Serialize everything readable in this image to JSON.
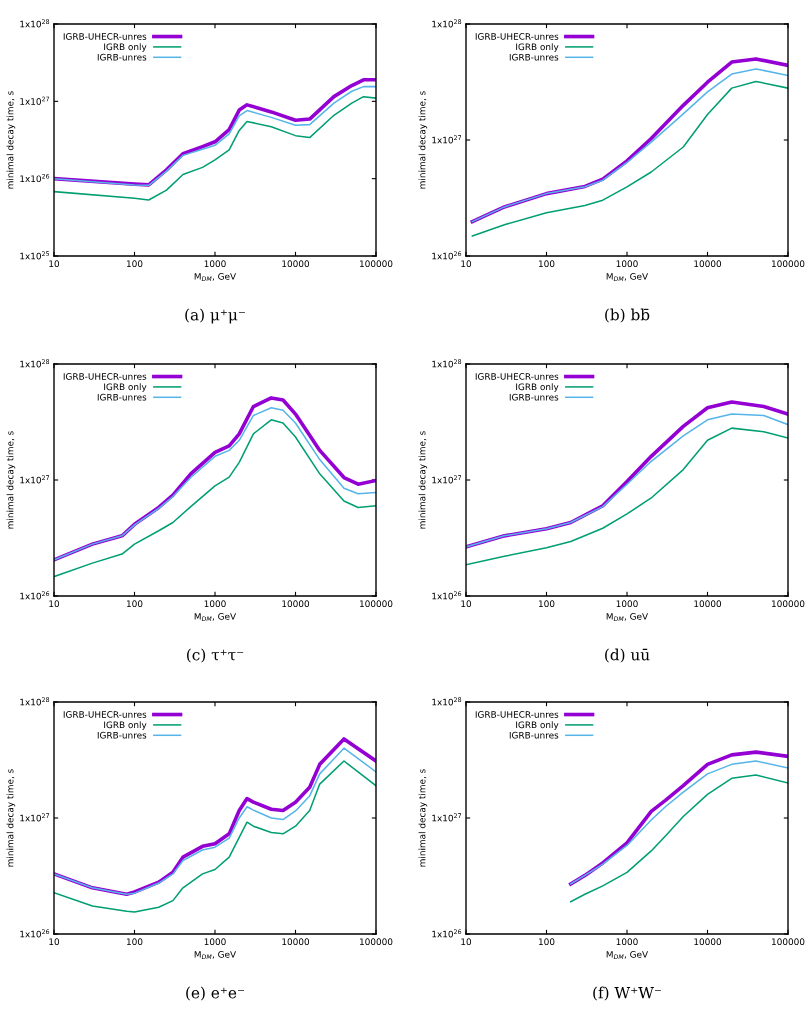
{
  "chart_data": [
    {
      "type": "line",
      "log": "xy",
      "legend": "top left",
      "grid": false,
      "xlabel": "M$_{DM}$, GeV",
      "ylabel": "minimal decay time, s",
      "annotations": [
        "(a) μ⁺μ⁻"
      ],
      "xlim": [
        10,
        100000
      ],
      "xticks": [
        10,
        100,
        1000,
        10000,
        100000
      ],
      "ylim": [
        1e+25,
        1e+28
      ],
      "yticks": [
        {
          "value": 1e+25,
          "label": "1x10$^{25}$"
        },
        {
          "value": 1e+26,
          "label": "1x10$^{26}$"
        },
        {
          "value": 1e+27,
          "label": "1x10$^{27}$"
        },
        {
          "value": 1e+28,
          "label": "1x10$^{28}$"
        }
      ],
      "x": [
        10,
        100,
        150,
        250,
        400,
        700,
        1000,
        1500,
        2000,
        2500,
        5000,
        10000,
        15000,
        30000,
        50000,
        70000,
        100000
      ],
      "series": [
        {
          "name": "IGRB-UHECR-unres",
          "color": "#9400d3",
          "values": [
            1e+26,
            8.5e+25,
            8.3e+25,
            1.3e+26,
            2.1e+26,
            2.6e+26,
            3e+26,
            4.3e+26,
            7.7e+26,
            9e+26,
            7.3e+26,
            5.7e+26,
            5.9e+26,
            1.15e+27,
            1.6e+27,
            1.9e+27,
            1.9e+27
          ]
        },
        {
          "name": "IGRB only",
          "color": "#009e73",
          "values": [
            6.8e+25,
            5.6e+25,
            5.3e+25,
            7.1e+25,
            1.13e+26,
            1.4e+26,
            1.75e+26,
            2.35e+26,
            4.2e+26,
            5.5e+26,
            4.7e+26,
            3.6e+26,
            3.4e+26,
            6.6e+26,
            9.5e+26,
            1.15e+27,
            1.1e+27
          ]
        },
        {
          "name": "IGRB-unres",
          "color": "#56b4e9",
          "values": [
            1e+26,
            8.3e+25,
            8.2e+25,
            1.25e+26,
            2e+26,
            2.4e+26,
            2.7e+26,
            3.8e+26,
            6.5e+26,
            7.6e+26,
            6.2e+26,
            4.9e+26,
            5e+26,
            9.5e+26,
            1.35e+27,
            1.55e+27,
            1.55e+27
          ]
        }
      ]
    },
    {
      "type": "line",
      "log": "xy",
      "legend": "top left",
      "grid": false,
      "xlabel": "M$_{DM}$, GeV",
      "ylabel": "minimal decay time, s",
      "annotations": [
        "(b) bb̄"
      ],
      "xlim": [
        10,
        100000
      ],
      "xticks": [
        10,
        100,
        1000,
        10000,
        100000
      ],
      "ylim": [
        1e+26,
        1e+28
      ],
      "yticks": [
        {
          "value": 1e+26,
          "label": "1x10$^{26}$"
        },
        {
          "value": 1e+27,
          "label": "1x10$^{27}$"
        },
        {
          "value": 1e+28,
          "label": "1x10$^{28}$"
        }
      ],
      "x": [
        12,
        30,
        100,
        300,
        500,
        1000,
        2000,
        5000,
        10000,
        20000,
        40000,
        100000
      ],
      "series": [
        {
          "name": "IGRB-UHECR-unres",
          "color": "#9400d3",
          "values": [
            1.98e+26,
            2.65e+26,
            3.45e+26,
            3.98e+26,
            4.6e+26,
            6.6e+26,
            1.03e+27,
            1.99e+27,
            3.15e+27,
            4.7e+27,
            5e+27,
            4.4e+27
          ]
        },
        {
          "name": "IGRB only",
          "color": "#009e73",
          "values": [
            1.49e+26,
            1.86e+26,
            2.36e+26,
            2.72e+26,
            3.03e+26,
            3.95e+26,
            5.3e+26,
            8.7e+26,
            1.66e+27,
            2.8e+27,
            3.2e+27,
            2.8e+27
          ]
        },
        {
          "name": "IGRB-unres",
          "color": "#56b4e9",
          "values": [
            1.98e+26,
            2.65e+26,
            3.45e+26,
            3.95e+26,
            4.5e+26,
            6.4e+26,
            9.6e+26,
            1.68e+27,
            2.6e+27,
            3.7e+27,
            4.1e+27,
            3.6e+27
          ]
        }
      ]
    },
    {
      "type": "line",
      "log": "xy",
      "legend": "top left",
      "grid": false,
      "xlabel": "M$_{DM}$, GeV",
      "ylabel": "minimal decay time, s",
      "annotations": [
        "(c) τ⁺τ⁻"
      ],
      "xlim": [
        10,
        100000
      ],
      "xticks": [
        10,
        100,
        1000,
        10000,
        100000
      ],
      "ylim": [
        1e+26,
        1e+28
      ],
      "yticks": [
        {
          "value": 1e+26,
          "label": "1x10$^{26}$"
        },
        {
          "value": 1e+27,
          "label": "1x10$^{27}$"
        },
        {
          "value": 1e+28,
          "label": "1x10$^{28}$"
        }
      ],
      "x": [
        10,
        30,
        70,
        100,
        200,
        300,
        500,
        1000,
        1500,
        2000,
        3000,
        5000,
        7000,
        10000,
        20000,
        40000,
        60000,
        100000
      ],
      "series": [
        {
          "name": "IGRB-UHECR-unres",
          "color": "#9400d3",
          "values": [
            2.05e+26,
            2.8e+26,
            3.3e+26,
            4.15e+26,
            5.8e+26,
            7.4e+26,
            1.13e+27,
            1.73e+27,
            1.97e+27,
            2.5e+27,
            4.3e+27,
            5.1e+27,
            4.9e+27,
            3.7e+27,
            1.8e+27,
            1.05e+27,
            9.2e+26,
            9.9e+26
          ]
        },
        {
          "name": "IGRB only",
          "color": "#009e73",
          "values": [
            1.47e+26,
            1.92e+26,
            2.3e+26,
            2.8e+26,
            3.65e+26,
            4.3e+26,
            5.9e+26,
            8.9e+26,
            1.06e+27,
            1.42e+27,
            2.5e+27,
            3.3e+27,
            3.1e+27,
            2.35e+27,
            1.13e+27,
            6.6e+26,
            5.8e+26,
            6e+26
          ]
        },
        {
          "name": "IGRB-unres",
          "color": "#56b4e9",
          "values": [
            2.05e+26,
            2.8e+26,
            3.3e+26,
            4.1e+26,
            5.7e+26,
            7.2e+26,
            1.05e+27,
            1.6e+27,
            1.8e+27,
            2.2e+27,
            3.6e+27,
            4.2e+27,
            4e+27,
            3.1e+27,
            1.5e+27,
            8.5e+26,
            7.6e+26,
            7.8e+26
          ]
        }
      ]
    },
    {
      "type": "line",
      "log": "xy",
      "legend": "top left",
      "grid": false,
      "xlabel": "M$_{DM}$, GeV",
      "ylabel": "minimal decay time, s",
      "annotations": [
        "(d) uū"
      ],
      "xlim": [
        10,
        100000
      ],
      "xticks": [
        10,
        100,
        1000,
        10000,
        100000
      ],
      "ylim": [
        1e+26,
        1e+28
      ],
      "yticks": [
        {
          "value": 1e+26,
          "label": "1x10$^{26}$"
        },
        {
          "value": 1e+27,
          "label": "1x10$^{27}$"
        },
        {
          "value": 1e+28,
          "label": "1x10$^{28}$"
        }
      ],
      "x": [
        10,
        30,
        100,
        200,
        500,
        1000,
        2000,
        5000,
        10000,
        20000,
        50000,
        100000
      ],
      "series": [
        {
          "name": "IGRB-UHECR-unres",
          "color": "#9400d3",
          "values": [
            2.65e+26,
            3.3e+26,
            3.8e+26,
            4.3e+26,
            6e+26,
            9.7e+26,
            1.6e+27,
            2.9e+27,
            4.2e+27,
            4.7e+27,
            4.3e+27,
            3.7e+27
          ]
        },
        {
          "name": "IGRB only",
          "color": "#009e73",
          "values": [
            1.86e+26,
            2.2e+26,
            2.6e+26,
            2.95e+26,
            3.84e+26,
            5.1e+26,
            7e+26,
            1.23e+27,
            2.2e+27,
            2.8e+27,
            2.6e+27,
            2.3e+27
          ]
        },
        {
          "name": "IGRB-unres",
          "color": "#56b4e9",
          "values": [
            2.65e+26,
            3.3e+26,
            3.8e+26,
            4.3e+26,
            5.9e+26,
            9.2e+26,
            1.45e+27,
            2.4e+27,
            3.3e+27,
            3.7e+27,
            3.6e+27,
            3e+27
          ]
        }
      ]
    },
    {
      "type": "line",
      "log": "xy",
      "legend": "top left",
      "grid": false,
      "xlabel": "M$_{DM}$, GeV",
      "ylabel": "minimal decay time, s",
      "annotations": [
        "(e) e⁺e⁻"
      ],
      "xlim": [
        10,
        100000
      ],
      "xticks": [
        10,
        100,
        1000,
        10000,
        100000
      ],
      "ylim": [
        1e+26,
        1e+28
      ],
      "yticks": [
        {
          "value": 1e+26,
          "label": "1x10$^{26}$"
        },
        {
          "value": 1e+27,
          "label": "1x10$^{27}$"
        },
        {
          "value": 1e+28,
          "label": "1x10$^{28}$"
        }
      ],
      "x": [
        10,
        30,
        80,
        100,
        200,
        300,
        400,
        700,
        1000,
        1500,
        2000,
        2500,
        3000,
        5000,
        7000,
        10000,
        15000,
        20000,
        40000,
        100000
      ],
      "series": [
        {
          "name": "IGRB-UHECR-unres",
          "color": "#9400d3",
          "values": [
            3.3e+26,
            2.5e+26,
            2.2e+26,
            2.3e+26,
            2.8e+26,
            3.4e+26,
            4.6e+26,
            5.7e+26,
            6e+26,
            7.3e+26,
            1.16e+27,
            1.47e+27,
            1.37e+27,
            1.19e+27,
            1.16e+27,
            1.37e+27,
            1.84e+27,
            2.9e+27,
            4.8e+27,
            3.1e+27
          ]
        },
        {
          "name": "IGRB only",
          "color": "#009e73",
          "values": [
            2.27e+26,
            1.74e+26,
            1.57e+26,
            1.55e+26,
            1.7e+26,
            1.94e+26,
            2.5e+26,
            3.3e+26,
            3.6e+26,
            4.6e+26,
            6.8e+26,
            9.2e+26,
            8.5e+26,
            7.5e+26,
            7.3e+26,
            8.5e+26,
            1.16e+27,
            1.96e+27,
            3.1e+27,
            1.9e+27
          ]
        },
        {
          "name": "IGRB-unres",
          "color": "#56b4e9",
          "values": [
            3.3e+26,
            2.5e+26,
            2.2e+26,
            2.25e+26,
            2.75e+26,
            3.3e+26,
            4.3e+26,
            5.3e+26,
            5.6e+26,
            6.7e+26,
            1e+27,
            1.25e+27,
            1.17e+27,
            1e+27,
            9.7e+26,
            1.15e+27,
            1.55e+27,
            2.4e+27,
            4e+27,
            2.5e+27
          ]
        }
      ]
    },
    {
      "type": "line",
      "log": "xy",
      "legend": "top left",
      "grid": false,
      "xlabel": "M$_{DM}$, GeV",
      "ylabel": "minimal decay time, s",
      "annotations": [
        "(f) W⁺W⁻"
      ],
      "xlim": [
        10,
        100000
      ],
      "xticks": [
        10,
        100,
        1000,
        10000,
        100000
      ],
      "ylim": [
        1e+26,
        1e+28
      ],
      "yticks": [
        {
          "value": 1e+26,
          "label": "1x10$^{26}$"
        },
        {
          "value": 1e+27,
          "label": "1x10$^{27}$"
        },
        {
          "value": 1e+28,
          "label": "1x10$^{28}$"
        }
      ],
      "x": [
        200,
        300,
        500,
        1000,
        2000,
        3000,
        5000,
        10000,
        20000,
        40000,
        100000
      ],
      "series": [
        {
          "name": "IGRB-UHECR-unres",
          "color": "#9400d3",
          "values": [
            2.7e+26,
            3.2e+26,
            4.1e+26,
            6.1e+26,
            1.14e+27,
            1.42e+27,
            1.9e+27,
            2.9e+27,
            3.5e+27,
            3.7e+27,
            3.4e+27
          ]
        },
        {
          "name": "IGRB only",
          "color": "#009e73",
          "values": [
            1.9e+26,
            2.2e+26,
            2.6e+26,
            3.4e+26,
            5.2e+26,
            7e+26,
            1.03e+27,
            1.6e+27,
            2.2e+27,
            2.35e+27,
            2e+27
          ]
        },
        {
          "name": "IGRB-unres",
          "color": "#56b4e9",
          "values": [
            2.7e+26,
            3.2e+26,
            4e+26,
            5.8e+26,
            9.6e+26,
            1.25e+27,
            1.67e+27,
            2.4e+27,
            2.9e+27,
            3.1e+27,
            2.7e+27
          ]
        }
      ]
    }
  ]
}
